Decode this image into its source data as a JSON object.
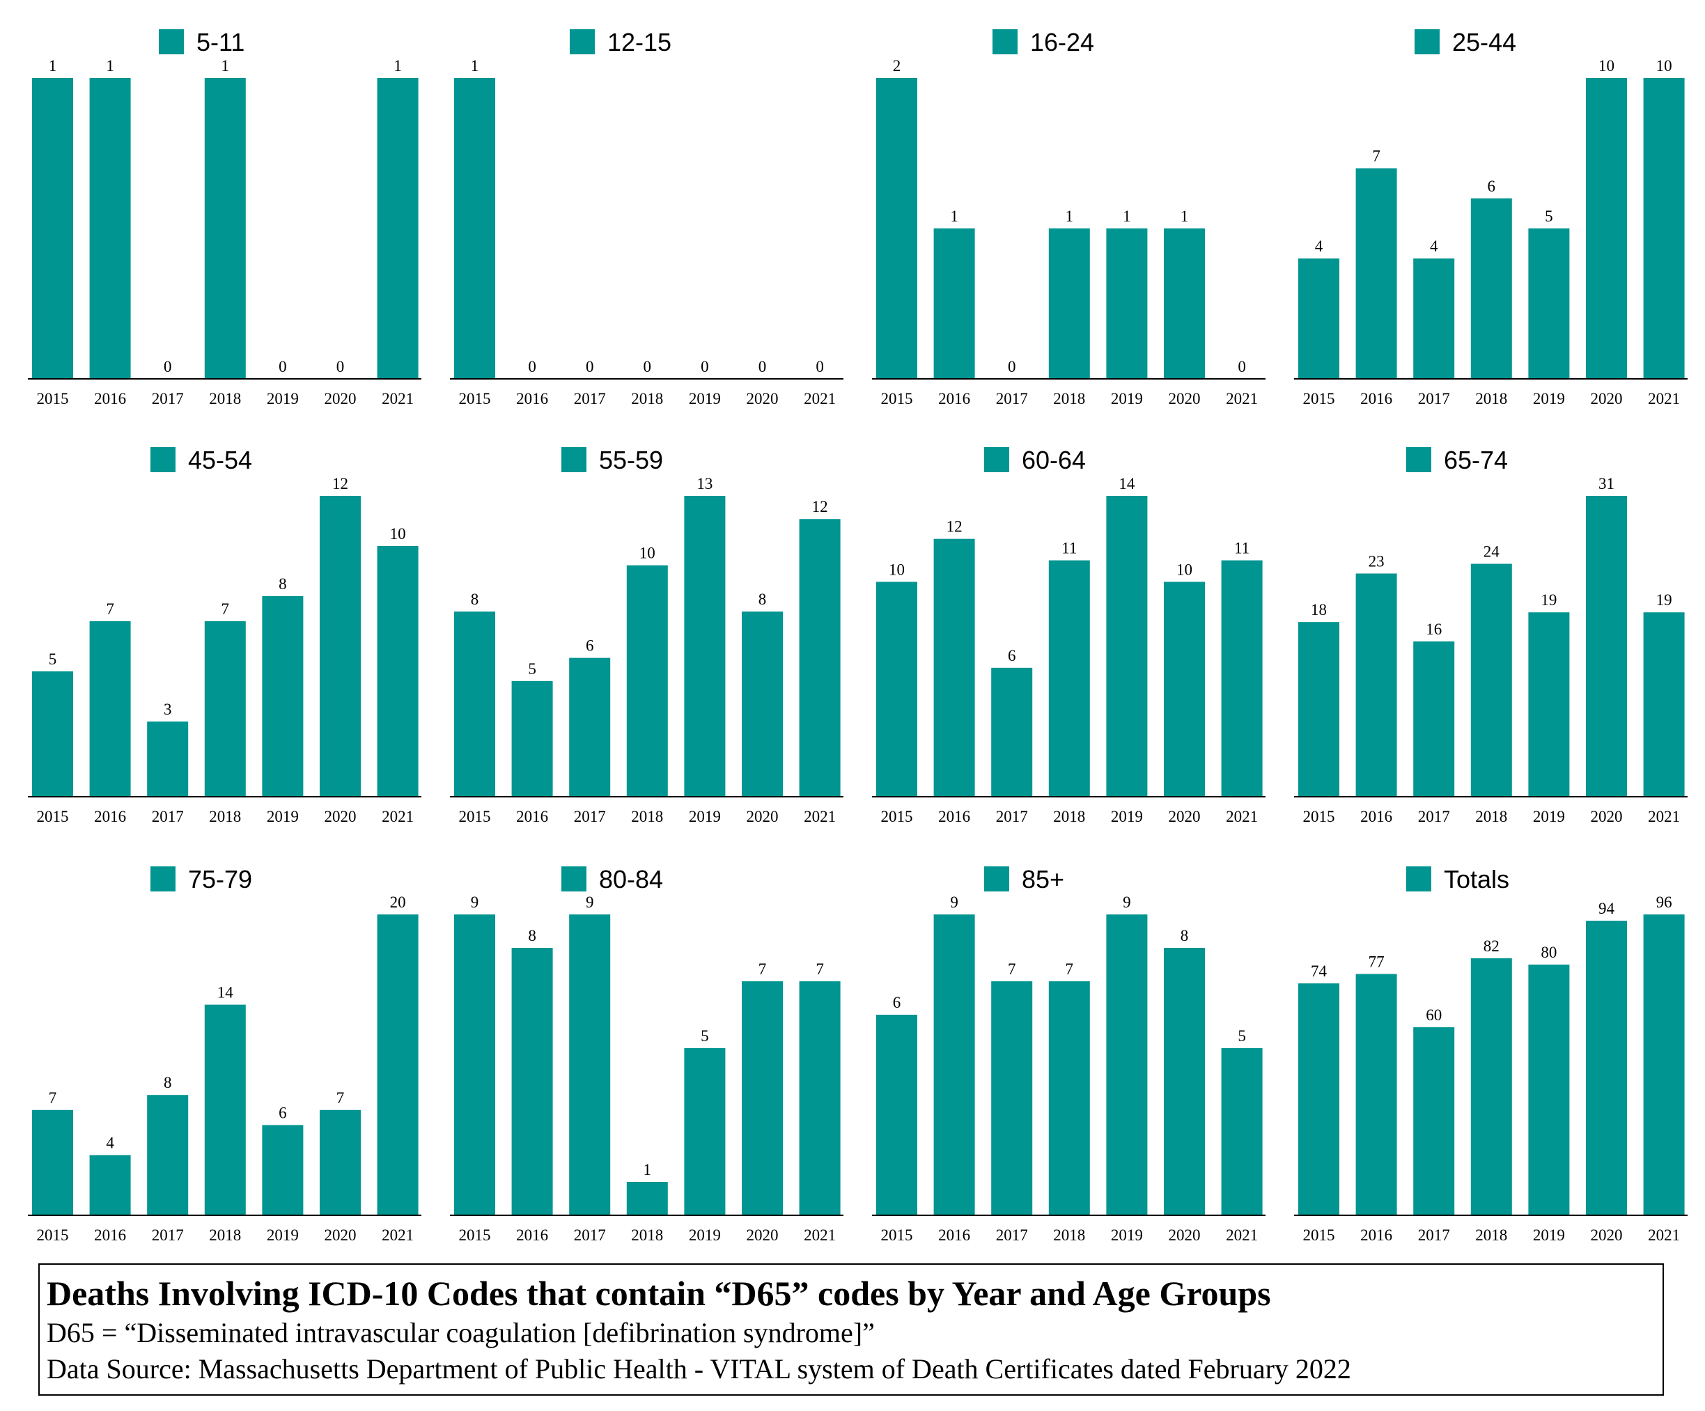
{
  "colors": {
    "bar": "#009591",
    "axis": "#000000"
  },
  "caption": {
    "title": "Deaths Involving ICD-10 Codes that contain “D65” codes by Year and Age Groups",
    "line1": "D65 = “Disseminated intravascular coagulation [defibrination syndrome]”",
    "line2": "Data Source:  Massachusetts Department of Public Health - VITAL system of Death Certificates dated February 2022"
  },
  "chart_data": [
    {
      "type": "bar",
      "legend": "5-11",
      "categories": [
        "2015",
        "2016",
        "2017",
        "2018",
        "2019",
        "2020",
        "2021"
      ],
      "values": [
        1,
        1,
        0,
        1,
        0,
        0,
        1
      ]
    },
    {
      "type": "bar",
      "legend": "12-15",
      "categories": [
        "2015",
        "2016",
        "2017",
        "2018",
        "2019",
        "2020",
        "2021"
      ],
      "values": [
        1,
        0,
        0,
        0,
        0,
        0,
        0
      ]
    },
    {
      "type": "bar",
      "legend": "16-24",
      "categories": [
        "2015",
        "2016",
        "2017",
        "2018",
        "2019",
        "2020",
        "2021"
      ],
      "values": [
        2,
        1,
        0,
        1,
        1,
        1,
        0
      ]
    },
    {
      "type": "bar",
      "legend": "25-44",
      "categories": [
        "2015",
        "2016",
        "2017",
        "2018",
        "2019",
        "2020",
        "2021"
      ],
      "values": [
        4,
        7,
        4,
        6,
        5,
        10,
        10
      ]
    },
    {
      "type": "bar",
      "legend": "45-54",
      "categories": [
        "2015",
        "2016",
        "2017",
        "2018",
        "2019",
        "2020",
        "2021"
      ],
      "values": [
        5,
        7,
        3,
        7,
        8,
        12,
        10
      ]
    },
    {
      "type": "bar",
      "legend": "55-59",
      "categories": [
        "2015",
        "2016",
        "2017",
        "2018",
        "2019",
        "2020",
        "2021"
      ],
      "values": [
        8,
        5,
        6,
        10,
        13,
        8,
        12
      ]
    },
    {
      "type": "bar",
      "legend": "60-64",
      "categories": [
        "2015",
        "2016",
        "2017",
        "2018",
        "2019",
        "2020",
        "2021"
      ],
      "values": [
        10,
        12,
        6,
        11,
        14,
        10,
        11
      ]
    },
    {
      "type": "bar",
      "legend": "65-74",
      "categories": [
        "2015",
        "2016",
        "2017",
        "2018",
        "2019",
        "2020",
        "2021"
      ],
      "values": [
        18,
        23,
        16,
        24,
        19,
        31,
        19
      ]
    },
    {
      "type": "bar",
      "legend": "75-79",
      "categories": [
        "2015",
        "2016",
        "2017",
        "2018",
        "2019",
        "2020",
        "2021"
      ],
      "values": [
        7,
        4,
        8,
        14,
        6,
        7,
        20
      ]
    },
    {
      "type": "bar",
      "legend": "80-84",
      "categories": [
        "2015",
        "2016",
        "2017",
        "2018",
        "2019",
        "2020",
        "2021"
      ],
      "values": [
        9,
        8,
        9,
        1,
        5,
        7,
        7
      ]
    },
    {
      "type": "bar",
      "legend": "85+",
      "categories": [
        "2015",
        "2016",
        "2017",
        "2018",
        "2019",
        "2020",
        "2021"
      ],
      "values": [
        6,
        9,
        7,
        7,
        9,
        8,
        5
      ]
    },
    {
      "type": "bar",
      "legend": "Totals",
      "categories": [
        "2015",
        "2016",
        "2017",
        "2018",
        "2019",
        "2020",
        "2021"
      ],
      "values": [
        74,
        77,
        60,
        82,
        80,
        94,
        96
      ]
    }
  ]
}
